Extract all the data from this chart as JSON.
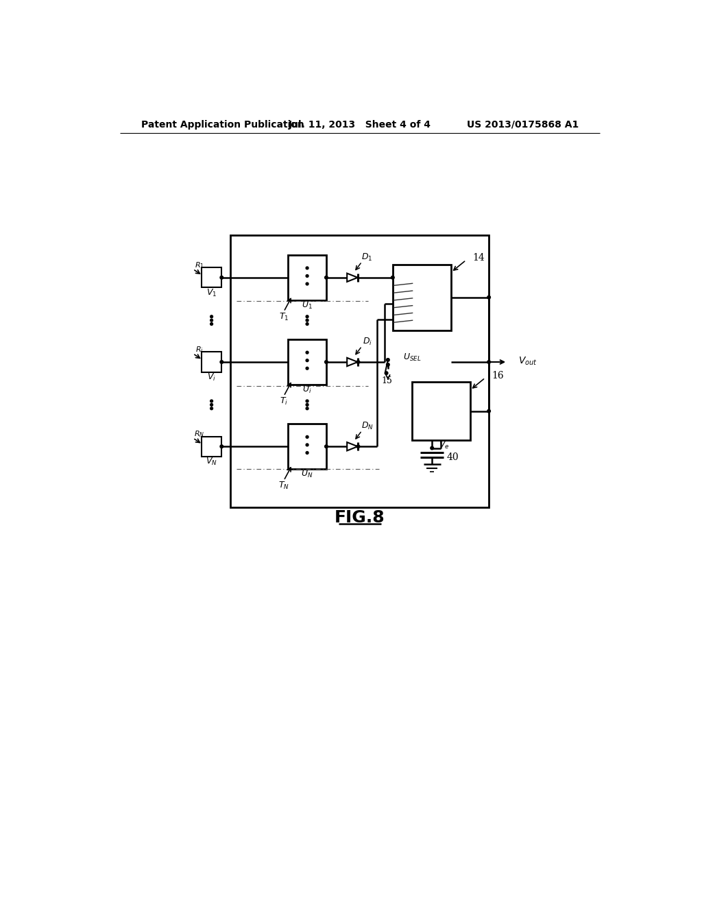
{
  "bg": "#ffffff",
  "hdr_left": "Patent Application Publication",
  "hdr_mid": "Jul. 11, 2013   Sheet 4 of 4",
  "hdr_right": "US 2013/0175868 A1",
  "fig_label": "FIG.8"
}
